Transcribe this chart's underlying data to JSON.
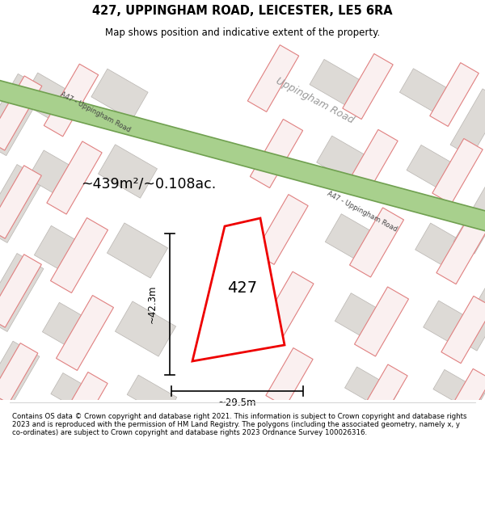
{
  "title": "427, UPPINGHAM ROAD, LEICESTER, LE5 6RA",
  "subtitle": "Map shows position and indicative extent of the property.",
  "footer": "Contains OS data © Crown copyright and database right 2021. This information is subject to Crown copyright and database rights 2023 and is reproduced with the permission of HM Land Registry. The polygons (including the associated geometry, namely x, y co-ordinates) are subject to Crown copyright and database rights 2023 Ordnance Survey 100026316.",
  "area_label": "~439m²/~0.108ac.",
  "dim_height": "~42.3m",
  "dim_width": "~29.5m",
  "plot_number": "427",
  "map_bg": "#f0efed",
  "road_green_color": "#a8d08d",
  "road_green_border": "#70a050",
  "building_fill": "#dddad6",
  "building_stroke": "#b8b4b0",
  "red_plot_color": "#ee0000",
  "pink_edge_color": "#e08080",
  "pink_fill": "#faf0f0",
  "white": "#ffffff",
  "gray_text": "#999999",
  "dark_text": "#333333",
  "road_text": "#444444"
}
